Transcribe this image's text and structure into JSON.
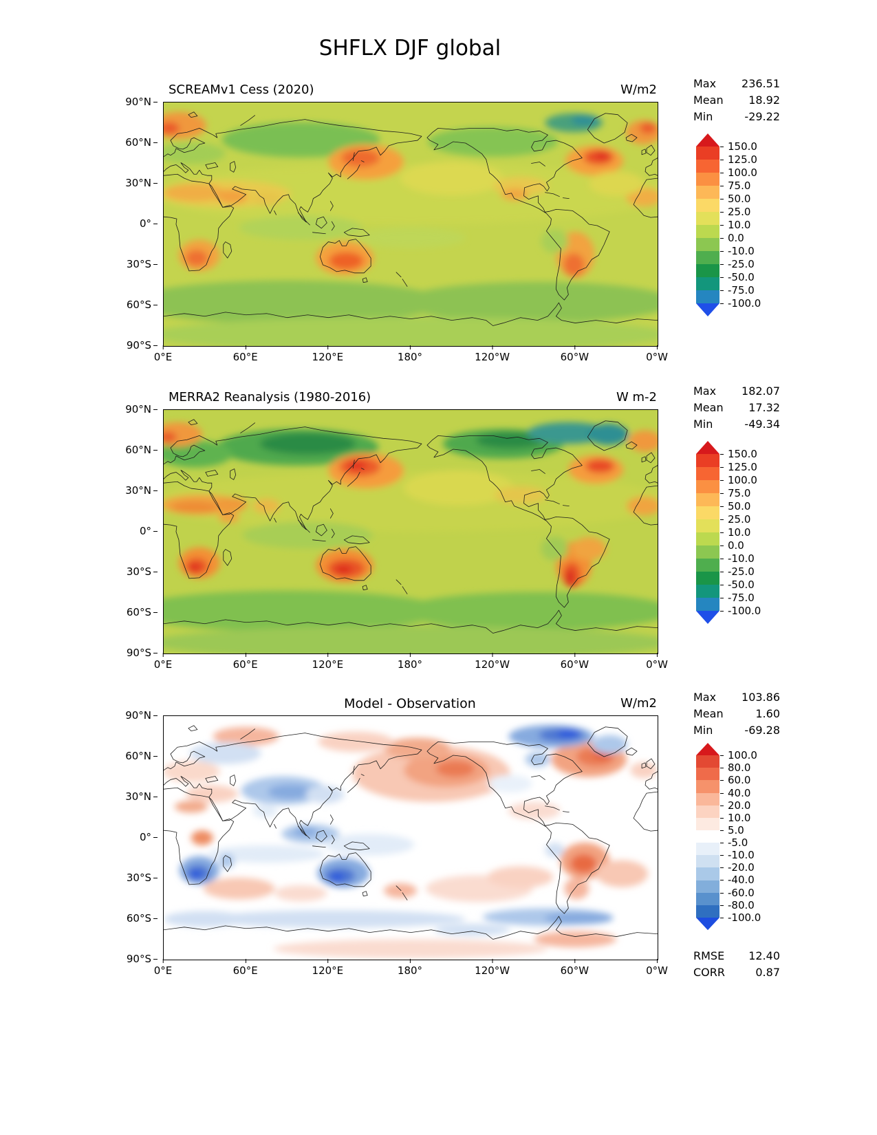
{
  "title": "SHFLX DJF global",
  "axes": {
    "y_ticks": [
      "90°N",
      "60°N",
      "30°N",
      "0°",
      "30°S",
      "60°S",
      "90°S"
    ],
    "x_ticks": [
      "0°E",
      "60°E",
      "120°E",
      "180°",
      "120°W",
      "60°W",
      "0°W"
    ]
  },
  "panels": [
    {
      "title": "SCREAMv1 Cess (2020)",
      "units": "W/m2",
      "stats": [
        {
          "label": "Max",
          "value": "236.51"
        },
        {
          "label": "Mean",
          "value": "18.92"
        },
        {
          "label": "Min",
          "value": "-29.22"
        }
      ]
    },
    {
      "title": "MERRA2 Reanalysis (1980-2016)",
      "units": "W m-2",
      "stats": [
        {
          "label": "Max",
          "value": "182.07"
        },
        {
          "label": "Mean",
          "value": "17.32"
        },
        {
          "label": "Min",
          "value": "-49.34"
        }
      ]
    },
    {
      "title": "Model - Observation",
      "units": "W/m2",
      "stats": [
        {
          "label": "Max",
          "value": "103.86"
        },
        {
          "label": "Mean",
          "value": "1.60"
        },
        {
          "label": "Min",
          "value": "-69.28"
        }
      ],
      "extra_stats": [
        {
          "label": "RMSE",
          "value": "12.40"
        },
        {
          "label": "CORR",
          "value": "0.87"
        }
      ]
    }
  ],
  "colorbars": {
    "flux": {
      "ticks": [
        "150.0",
        "125.0",
        "100.0",
        "75.0",
        "50.0",
        "25.0",
        "10.0",
        "0.0",
        "-10.0",
        "-25.0",
        "-50.0",
        "-75.0",
        "-100.0"
      ],
      "colors": [
        "#d7191c",
        "#ea3e24",
        "#f76532",
        "#fb9042",
        "#fdb857",
        "#fbd966",
        "#e3e05a",
        "#bcd94f",
        "#8cc751",
        "#4fae4e",
        "#1a9548",
        "#13967c",
        "#2586c0",
        "#1f4fe8"
      ]
    },
    "diff": {
      "ticks": [
        "100.0",
        "80.0",
        "60.0",
        "40.0",
        "20.0",
        "10.0",
        "5.0",
        "-5.0",
        "-10.0",
        "-20.0",
        "-40.0",
        "-60.0",
        "-80.0",
        "-100.0"
      ],
      "colors": [
        "#d7191c",
        "#e34933",
        "#ef6b4a",
        "#f6926b",
        "#fab79a",
        "#fcd3c1",
        "#fdeae1",
        "#ffffff",
        "#e8f0f9",
        "#cfe0f1",
        "#aac9e8",
        "#82aedb",
        "#5991cd",
        "#2f6fc0",
        "#1d4de0"
      ]
    }
  },
  "chart_data": [
    {
      "type": "heatmap",
      "title": "SCREAMv1 Cess (2020)",
      "variable": "SHFLX",
      "season": "DJF",
      "region": "global",
      "units": "W/m2",
      "projection": "equirectangular, longitude 0°E eastward to 0°W (centered on 180°)",
      "stats": {
        "max": 236.51,
        "mean": 18.92,
        "min": -29.22
      },
      "colorbar_levels": [
        -100,
        -75,
        -50,
        -25,
        -10,
        0,
        10,
        25,
        50,
        75,
        100,
        125,
        150
      ],
      "colorbar_extend": "both",
      "x_ticks": [
        "0°E",
        "60°E",
        "120°E",
        "180°",
        "120°W",
        "60°W",
        "0°W"
      ],
      "y_ticks": [
        "90°N",
        "60°N",
        "30°N",
        "0°",
        "30°S",
        "60°S",
        "90°S"
      ]
    },
    {
      "type": "heatmap",
      "title": "MERRA2 Reanalysis (1980-2016)",
      "variable": "SHFLX",
      "season": "DJF",
      "region": "global",
      "units": "W m-2",
      "projection": "equirectangular, longitude 0°E eastward to 0°W (centered on 180°)",
      "stats": {
        "max": 182.07,
        "mean": 17.32,
        "min": -49.34
      },
      "colorbar_levels": [
        -100,
        -75,
        -50,
        -25,
        -10,
        0,
        10,
        25,
        50,
        75,
        100,
        125,
        150
      ],
      "colorbar_extend": "both",
      "x_ticks": [
        "0°E",
        "60°E",
        "120°E",
        "180°",
        "120°W",
        "60°W",
        "0°W"
      ],
      "y_ticks": [
        "90°N",
        "60°N",
        "30°N",
        "0°",
        "30°S",
        "60°S",
        "90°S"
      ]
    },
    {
      "type": "heatmap",
      "title": "Model - Observation",
      "variable": "SHFLX difference",
      "season": "DJF",
      "region": "global",
      "units": "W/m2",
      "projection": "equirectangular, longitude 0°E eastward to 0°W (centered on 180°)",
      "stats": {
        "max": 103.86,
        "mean": 1.6,
        "min": -69.28,
        "rmse": 12.4,
        "corr": 0.87
      },
      "colorbar_levels": [
        -100,
        -80,
        -60,
        -40,
        -20,
        -10,
        -5,
        5,
        10,
        20,
        40,
        60,
        80,
        100
      ],
      "colorbar_extend": "both",
      "x_ticks": [
        "0°E",
        "60°E",
        "120°E",
        "180°",
        "120°W",
        "60°W",
        "0°W"
      ],
      "y_ticks": [
        "90°N",
        "60°N",
        "30°N",
        "0°",
        "30°S",
        "60°S",
        "90°S"
      ]
    }
  ]
}
